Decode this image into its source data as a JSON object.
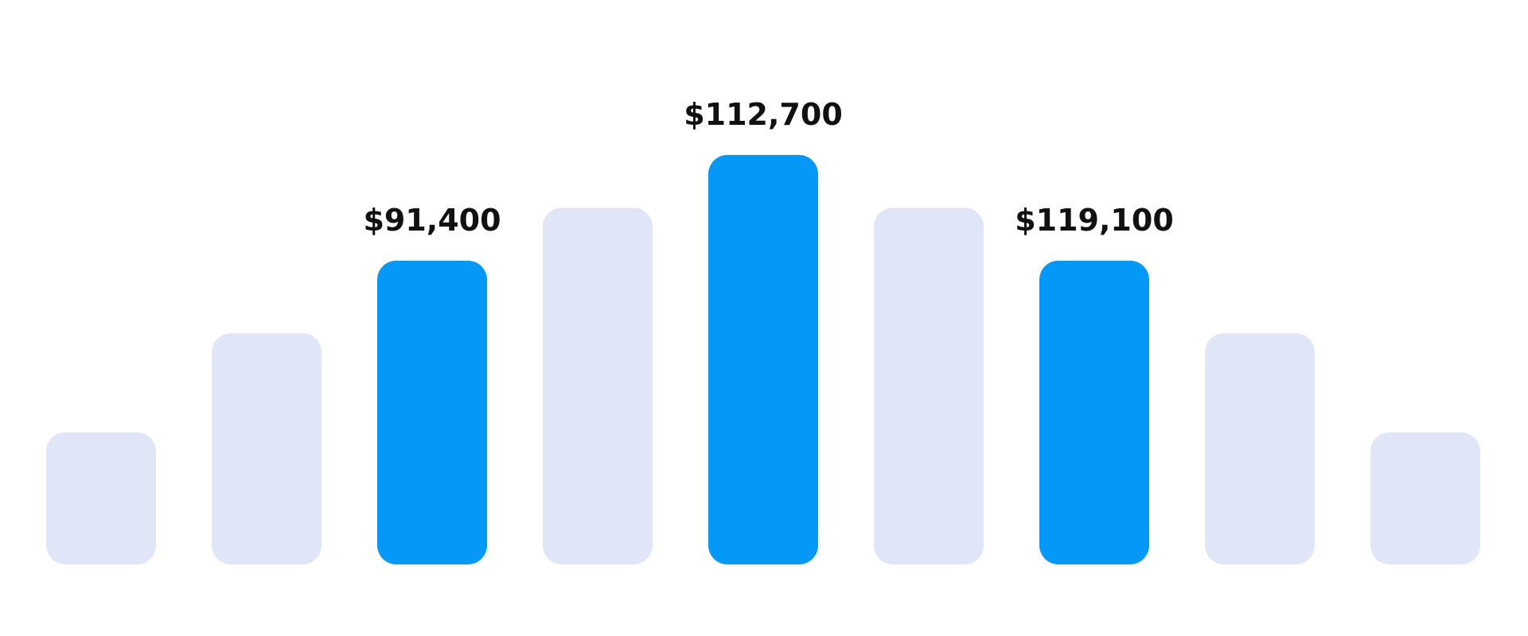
{
  "chart_data": {
    "type": "bar",
    "categories": [
      "",
      "",
      "",
      "",
      "",
      "",
      "",
      "",
      ""
    ],
    "values": [
      20,
      35,
      46,
      54,
      62,
      54,
      46,
      35,
      20
    ],
    "highlighted": [
      false,
      false,
      true,
      false,
      true,
      false,
      true,
      false,
      false
    ],
    "data_labels": [
      "",
      "",
      "$91,400",
      "",
      "$112,700",
      "",
      "$119,100",
      "",
      ""
    ],
    "ylim": [
      0,
      65
    ],
    "grid": false,
    "title": "",
    "xlabel": "",
    "ylabel": ""
  },
  "colors": {
    "highlight_bar": "#0598f7",
    "muted_bar": "#e0e5f7",
    "label_text": "#111111",
    "background": "#ffffff"
  }
}
